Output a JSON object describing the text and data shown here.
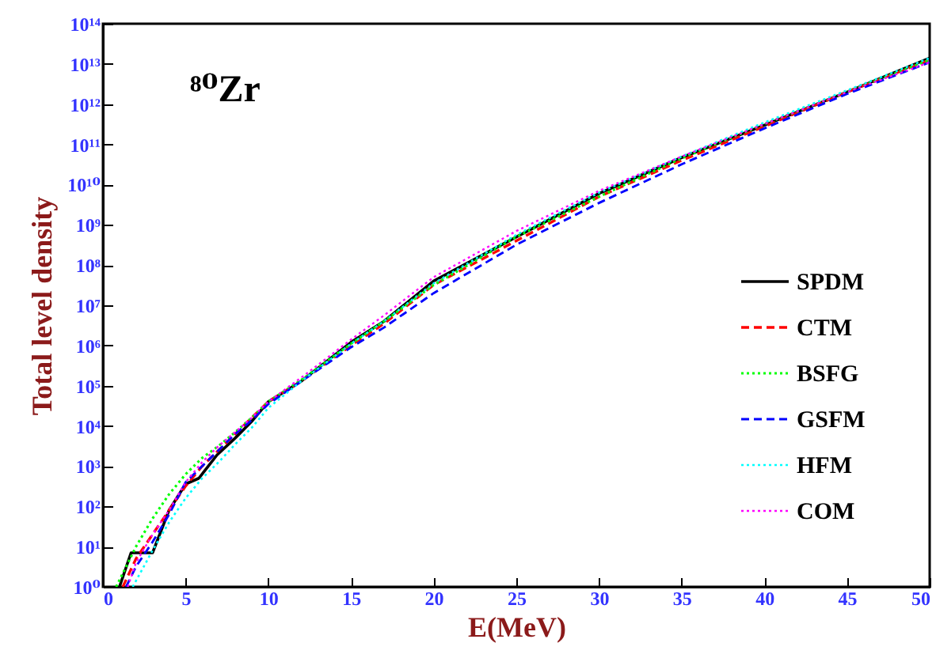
{
  "chart_data": {
    "type": "line",
    "xlabel": "E(MeV)",
    "ylabel": "Total level density",
    "annotations": [
      "⁸⁰Zr"
    ],
    "log": "y",
    "xlim": [
      0,
      50
    ],
    "xticks": [
      0,
      5,
      10,
      15,
      20,
      25,
      30,
      35,
      40,
      45,
      50
    ],
    "ylim": [
      1,
      100000000000000.0
    ],
    "yticks": [
      {
        "value": 1,
        "label": "10⁰"
      },
      {
        "value": 10,
        "label": "10¹"
      },
      {
        "value": 100,
        "label": "10²"
      },
      {
        "value": 1000,
        "label": "10³"
      },
      {
        "value": 10000,
        "label": "10⁴"
      },
      {
        "value": 100000,
        "label": "10⁵"
      },
      {
        "value": 1000000,
        "label": "10⁶"
      },
      {
        "value": 10000000,
        "label": "10⁷"
      },
      {
        "value": 100000000,
        "label": "10⁸"
      },
      {
        "value": 1000000000,
        "label": "10⁹"
      },
      {
        "value": 10000000000,
        "label": "10¹⁰"
      },
      {
        "value": 100000000000,
        "label": "10¹¹"
      },
      {
        "value": 1000000000000,
        "label": "10¹²"
      },
      {
        "value": 10000000000000,
        "label": "10¹³"
      },
      {
        "value": 100000000000000,
        "label": "10¹⁴"
      }
    ],
    "legend": "bottom right",
    "grid": false,
    "marker": "none",
    "series": [
      {
        "name": "SPDM",
        "color": "#000000",
        "line_style": "solid",
        "x": [
          1,
          1.7,
          2,
          3,
          4,
          5,
          5.8,
          6.9,
          8,
          9,
          10,
          12,
          15,
          17,
          20,
          25,
          30,
          35,
          40,
          45,
          50
        ],
        "values": [
          1,
          7,
          7,
          7,
          80,
          360,
          500,
          1900,
          5000,
          13000,
          40000,
          130000,
          1200000,
          4000000,
          40000000,
          500000000,
          6000000000,
          47000000000,
          300000000000,
          2000000000000,
          14000000000000
        ]
      },
      {
        "name": "CTM",
        "color": "#ff0000",
        "line_style": "dashed",
        "x": [
          1.2,
          2,
          3,
          4,
          5,
          6,
          7,
          8,
          9,
          10,
          12,
          15,
          17,
          20,
          25,
          30,
          35,
          40,
          45,
          50
        ],
        "values": [
          1,
          5,
          20,
          80,
          320,
          1000,
          2500,
          6300,
          16000,
          40000,
          130000,
          1000000,
          3500000,
          32000000,
          400000000,
          5000000000,
          40000000000,
          280000000000,
          2000000000000,
          12600000000000
        ]
      },
      {
        "name": "BSFG",
        "color": "#00ff00",
        "line_style": "dotted",
        "x": [
          0.8,
          2,
          3,
          4,
          5,
          6,
          7,
          8,
          9,
          10,
          12,
          15,
          17,
          20,
          25,
          30,
          35,
          40,
          45,
          50
        ],
        "values": [
          1,
          10,
          50,
          200,
          630,
          1600,
          3200,
          7000,
          16000,
          40000,
          140000,
          1100000,
          4000000,
          32000000,
          500000000,
          5000000000,
          45000000000,
          320000000000,
          2000000000000,
          12600000000000
        ]
      },
      {
        "name": "GSFM",
        "color": "#0000ff",
        "line_style": "dashed",
        "x": [
          1.4,
          2,
          3,
          4,
          5,
          6,
          7,
          8,
          9,
          10,
          12,
          15,
          17,
          20,
          25,
          30,
          35,
          40,
          45,
          50
        ],
        "values": [
          1,
          3.2,
          13,
          63,
          400,
          1000,
          2500,
          6300,
          14000,
          35000,
          130000,
          900000,
          2800000,
          20000000,
          320000000,
          3500000000,
          32000000000,
          250000000000,
          1800000000000,
          11000000000000
        ]
      },
      {
        "name": "HFM",
        "color": "#00ffff",
        "line_style": "dotted",
        "x": [
          1.8,
          3,
          4,
          5,
          6,
          7,
          8,
          9,
          10,
          12,
          15,
          17,
          20,
          25,
          30,
          35,
          40,
          45,
          50
        ],
        "values": [
          1,
          8,
          40,
          160,
          500,
          1260,
          3500,
          9000,
          28000,
          130000,
          1100000,
          4000000,
          35000000,
          560000000,
          6300000000,
          50000000000,
          350000000000,
          2200000000000,
          14000000000000
        ]
      },
      {
        "name": "COM",
        "color": "#ff00ff",
        "line_style": "dotted",
        "x": [
          1.5,
          2,
          3,
          4,
          5,
          6,
          7,
          8,
          9,
          10,
          12,
          15,
          17,
          20,
          25,
          30,
          35,
          40,
          45,
          50
        ],
        "values": [
          1,
          4,
          20,
          80,
          400,
          1260,
          3200,
          7000,
          16000,
          40000,
          160000,
          1400000,
          5600000,
          50000000,
          700000000,
          7000000000,
          50000000000,
          320000000000,
          2000000000000,
          11000000000000
        ]
      }
    ]
  }
}
